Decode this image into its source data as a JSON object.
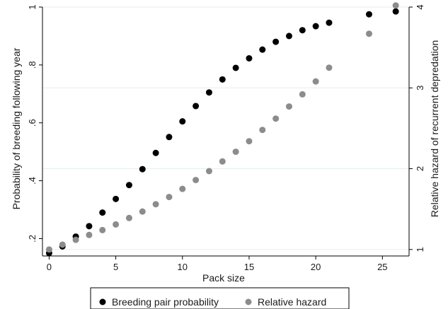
{
  "chart_data": {
    "type": "scatter",
    "xlabel": "Pack size",
    "ylabel_left": "Probability of breeding following year",
    "ylabel_right": "Relative hazard of recurrent depredation",
    "xlim": [
      -0.5,
      27
    ],
    "ylim_left": [
      0.14,
      1.0
    ],
    "ylim_right": [
      0.92,
      4.0
    ],
    "x_ticks": [
      {
        "value": 0,
        "label": "0"
      },
      {
        "value": 5,
        "label": "5"
      },
      {
        "value": 10,
        "label": "10"
      },
      {
        "value": 15,
        "label": "15"
      },
      {
        "value": 20,
        "label": "20"
      },
      {
        "value": 25,
        "label": "25"
      }
    ],
    "y_left_ticks": [
      {
        "value": 0.2,
        "label": ".2"
      },
      {
        "value": 0.4,
        "label": ".4"
      },
      {
        "value": 0.6,
        "label": ".6"
      },
      {
        "value": 0.8,
        "label": ".8"
      },
      {
        "value": 1.0,
        "label": "1"
      }
    ],
    "y_right_ticks": [
      {
        "value": 1,
        "label": "1"
      },
      {
        "value": 2,
        "label": "2"
      },
      {
        "value": 3,
        "label": "3"
      },
      {
        "value": 4,
        "label": "4"
      }
    ],
    "grid": true,
    "legend_position": "bottom",
    "series": [
      {
        "name": "Breeding pair probability",
        "axis": "left",
        "color": "#000000",
        "x": [
          0,
          1,
          2,
          3,
          4,
          5,
          6,
          7,
          8,
          9,
          10,
          11,
          12,
          13,
          14,
          15,
          16,
          17,
          18,
          19,
          20,
          21,
          24,
          26
        ],
        "y": [
          0.15,
          0.173,
          0.207,
          0.243,
          0.29,
          0.337,
          0.385,
          0.44,
          0.496,
          0.551,
          0.605,
          0.658,
          0.705,
          0.75,
          0.79,
          0.823,
          0.853,
          0.88,
          0.9,
          0.92,
          0.934,
          0.946,
          0.975,
          0.985
        ]
      },
      {
        "name": "Relative hazard",
        "axis": "right",
        "color": "#8c8c8c",
        "x": [
          0,
          1,
          2,
          3,
          4,
          5,
          6,
          7,
          8,
          9,
          10,
          11,
          12,
          13,
          14,
          15,
          16,
          17,
          18,
          19,
          20,
          21,
          24,
          26
        ],
        "y": [
          1.0,
          1.06,
          1.12,
          1.18,
          1.24,
          1.31,
          1.39,
          1.47,
          1.56,
          1.65,
          1.75,
          1.86,
          1.97,
          2.09,
          2.21,
          2.34,
          2.48,
          2.62,
          2.77,
          2.92,
          3.08,
          3.25,
          3.67,
          4.02
        ]
      }
    ]
  }
}
